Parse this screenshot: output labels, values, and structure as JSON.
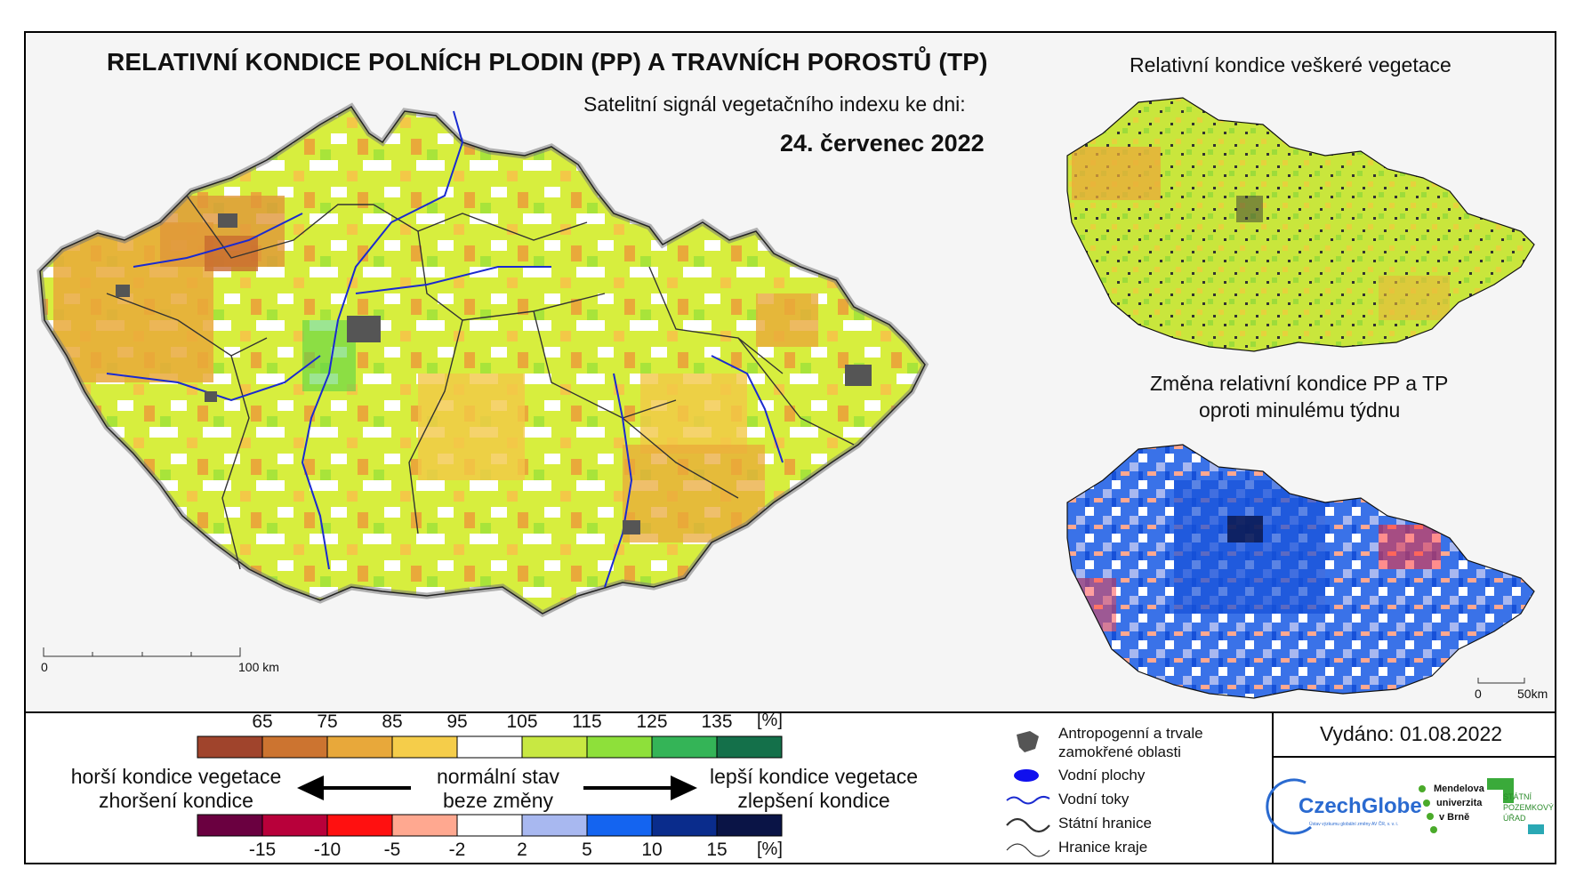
{
  "header": {
    "title": "RELATIVNÍ KONDICE POLNÍCH PLODIN (PP) A TRAVNÍCH POROSTŮ (TP)",
    "subtitle": "Satelitní signál vegetačního indexu ke dni:",
    "date": "24. červenec 2022"
  },
  "main_map": {
    "scale_start": "0",
    "scale_end": "100 km"
  },
  "panel_top": {
    "title": "Relativní kondice veškeré vegetace"
  },
  "panel_bottom": {
    "title_line1": "Změna relativní kondice PP a TP",
    "title_line2": "oproti minulému týdnu",
    "scale_start": "0",
    "scale_end": "50km"
  },
  "legend": {
    "condition_scale": {
      "labels": [
        "65",
        "75",
        "85",
        "95",
        "105",
        "115",
        "125",
        "135"
      ],
      "unit": "[%]",
      "colors": [
        "#a0442c",
        "#cc7430",
        "#e8a83a",
        "#f5cd4a",
        "#ffffff",
        "#c8e842",
        "#8ee03a",
        "#34b457",
        "#14704a"
      ]
    },
    "change_scale": {
      "labels": [
        "-15",
        "-10",
        "-5",
        "-2",
        "2",
        "5",
        "10",
        "15"
      ],
      "unit": "[%]",
      "colors": [
        "#6a0040",
        "#b8003a",
        "#ff1010",
        "#ffa890",
        "#ffffff",
        "#a8b8f0",
        "#1464f0",
        "#0a2c8c",
        "#0a1446"
      ]
    },
    "left_line1": "horší kondice vegetace",
    "left_line2": "zhoršení kondice",
    "middle_line1": "normální stav",
    "middle_line2": "beze změny",
    "right_line1": "lepší kondice vegetace",
    "right_line2": "zlepšení kondice",
    "symbols": {
      "urban_line1": "Antropogenní a trvale",
      "urban_line2": "zamokřené oblasti",
      "water_bodies": "Vodní plochy",
      "rivers": "Vodní toky",
      "state_border": "Státní hranice",
      "region_border": "Hranice kraje"
    },
    "colors": {
      "urban": "#555555",
      "water": "#1010ee",
      "river": "#1a2ad0"
    }
  },
  "footer": {
    "issued": "Vydáno: 01.08.2022",
    "logo_czechglobe": "CzechGlobe",
    "logo_czechglobe_sub": "Ústav výzkumu globální změny AV ČR, v. v. i.",
    "logo_mendel_1": "Mendelova",
    "logo_mendel_2": "univerzita",
    "logo_mendel_3": "v Brně",
    "logo_spu_1": "STÁTNÍ",
    "logo_spu_2": "POZEMKOVÝ",
    "logo_spu_3": "ÚŘAD"
  }
}
